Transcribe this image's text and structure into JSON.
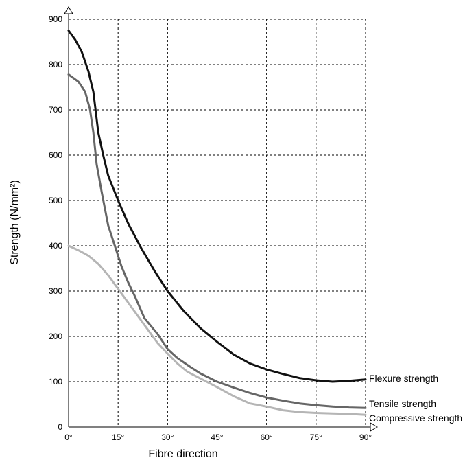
{
  "chart_data": {
    "type": "line",
    "title": "",
    "xlabel": "Fibre direction",
    "ylabel": "Strength (N/mm²)",
    "xlim": [
      0,
      90
    ],
    "ylim": [
      0,
      900
    ],
    "grid": true,
    "x_ticks": [
      {
        "value": 0,
        "label": "0°"
      },
      {
        "value": 15,
        "label": "15°"
      },
      {
        "value": 30,
        "label": "30°"
      },
      {
        "value": 45,
        "label": "45°"
      },
      {
        "value": 60,
        "label": "60°"
      },
      {
        "value": 75,
        "label": "75°"
      },
      {
        "value": 90,
        "label": "90°"
      }
    ],
    "y_ticks": [
      0,
      100,
      200,
      300,
      400,
      500,
      600,
      700,
      800,
      900
    ],
    "series": [
      {
        "name": "Flexure strength",
        "color": "#111111",
        "points": [
          [
            0,
            875
          ],
          [
            2,
            855
          ],
          [
            4,
            828
          ],
          [
            6,
            785
          ],
          [
            7.5,
            740
          ],
          [
            9,
            650
          ],
          [
            10.5,
            600
          ],
          [
            12,
            555
          ],
          [
            15,
            500
          ],
          [
            18,
            450
          ],
          [
            22,
            395
          ],
          [
            26,
            345
          ],
          [
            30,
            300
          ],
          [
            35,
            255
          ],
          [
            40,
            218
          ],
          [
            45,
            188
          ],
          [
            50,
            160
          ],
          [
            55,
            140
          ],
          [
            60,
            127
          ],
          [
            65,
            117
          ],
          [
            70,
            108
          ],
          [
            75,
            103
          ],
          [
            80,
            100
          ],
          [
            85,
            102
          ],
          [
            90,
            105
          ]
        ]
      },
      {
        "name": "Tensile strength",
        "color": "#666666",
        "points": [
          [
            0,
            778
          ],
          [
            3,
            762
          ],
          [
            5,
            740
          ],
          [
            6.5,
            700
          ],
          [
            7.5,
            650
          ],
          [
            8.5,
            580
          ],
          [
            10,
            520
          ],
          [
            12,
            445
          ],
          [
            14,
            400
          ],
          [
            16,
            355
          ],
          [
            18,
            320
          ],
          [
            20,
            290
          ],
          [
            23,
            240
          ],
          [
            27,
            205
          ],
          [
            30,
            172
          ],
          [
            33,
            152
          ],
          [
            37,
            132
          ],
          [
            40,
            118
          ],
          [
            45,
            100
          ],
          [
            50,
            87
          ],
          [
            55,
            75
          ],
          [
            60,
            65
          ],
          [
            65,
            58
          ],
          [
            70,
            52
          ],
          [
            75,
            48
          ],
          [
            80,
            45
          ],
          [
            85,
            43
          ],
          [
            90,
            42
          ]
        ]
      },
      {
        "name": "Compressive strength",
        "color": "#b5b5b5",
        "points": [
          [
            0,
            400
          ],
          [
            3,
            390
          ],
          [
            6,
            378
          ],
          [
            9,
            360
          ],
          [
            12,
            335
          ],
          [
            15,
            305
          ],
          [
            18,
            275
          ],
          [
            21,
            245
          ],
          [
            24,
            215
          ],
          [
            27,
            185
          ],
          [
            30,
            162
          ],
          [
            33,
            140
          ],
          [
            36,
            122
          ],
          [
            40,
            107
          ],
          [
            45,
            88
          ],
          [
            50,
            68
          ],
          [
            55,
            52
          ],
          [
            60,
            45
          ],
          [
            65,
            37
          ],
          [
            70,
            33
          ],
          [
            75,
            31
          ],
          [
            80,
            30
          ],
          [
            85,
            29
          ],
          [
            90,
            27
          ]
        ]
      }
    ]
  }
}
